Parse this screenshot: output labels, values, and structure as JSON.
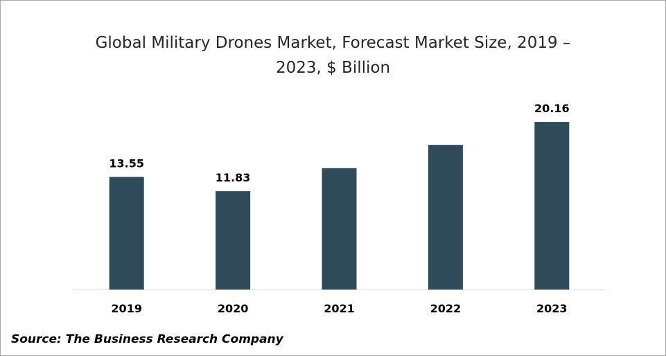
{
  "chart_data": {
    "type": "bar",
    "title_line1": "Global Military Drones Market, Forecast Market Size, 2019 –",
    "title_line2": "2023, $ Billion",
    "xlabel": "",
    "ylabel": "",
    "categories": [
      "2019",
      "2020",
      "2021",
      "2022",
      "2023"
    ],
    "values": [
      13.55,
      11.83,
      14.6,
      17.4,
      20.16
    ],
    "data_labels": [
      "13.55",
      "11.83",
      "",
      "",
      "20.16"
    ],
    "ylim": [
      0,
      25
    ],
    "grid": false,
    "legend": "none",
    "bar_color": "#2f4b5a",
    "axis_color": "#d9d9d9"
  },
  "source": "Source: The Business Research Company"
}
